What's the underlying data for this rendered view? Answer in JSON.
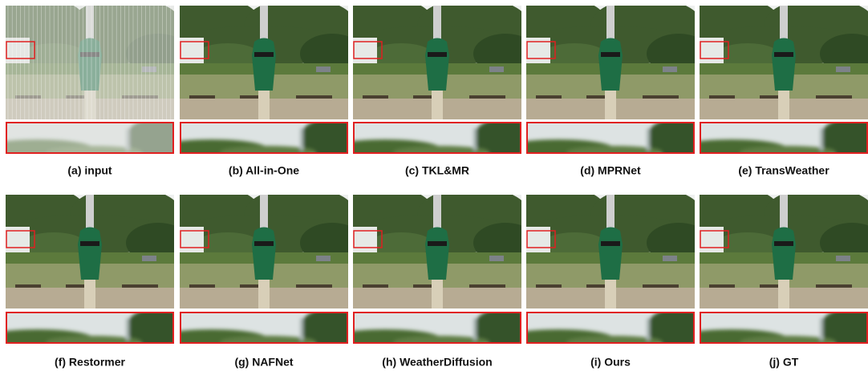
{
  "panels": [
    {
      "caption": "(a) input"
    },
    {
      "caption": "(b) All-in-One"
    },
    {
      "caption": "(c) TKL&MR"
    },
    {
      "caption": "(d) MPRNet"
    },
    {
      "caption": "(e) TransWeather"
    },
    {
      "caption": "(f) Restormer"
    },
    {
      "caption": "(g) NAFNet"
    },
    {
      "caption": "(h) WeatherDiffusion"
    },
    {
      "caption": "(i) Ours"
    },
    {
      "caption": "(j) GT"
    }
  ]
}
